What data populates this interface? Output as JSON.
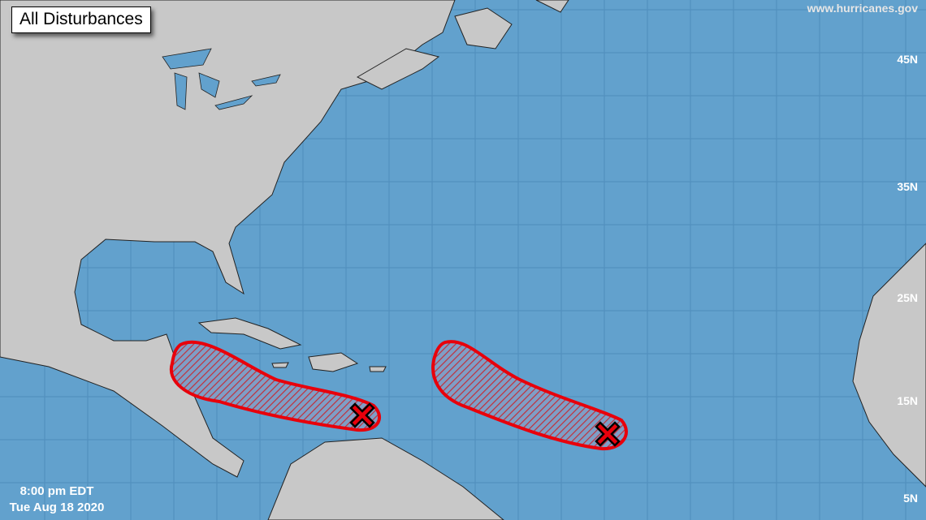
{
  "title": "All Disturbances",
  "credit": "www.hurricanes.gov",
  "latitude_labels": [
    "45N",
    "35N",
    "25N",
    "15N",
    "5N"
  ],
  "time": "8:00 pm EDT",
  "date": "Tue Aug 18 2020",
  "colors": {
    "ocean": "#62a1cd",
    "land": "#c8c8c8",
    "outline": "#e8000b",
    "marker": "#e8000b",
    "hatch": "#3b4a7a"
  },
  "disturbances": [
    {
      "name": "western-caribbean-area",
      "marker": "x-icon"
    },
    {
      "name": "central-atlantic-area",
      "marker": "x-icon"
    }
  ]
}
